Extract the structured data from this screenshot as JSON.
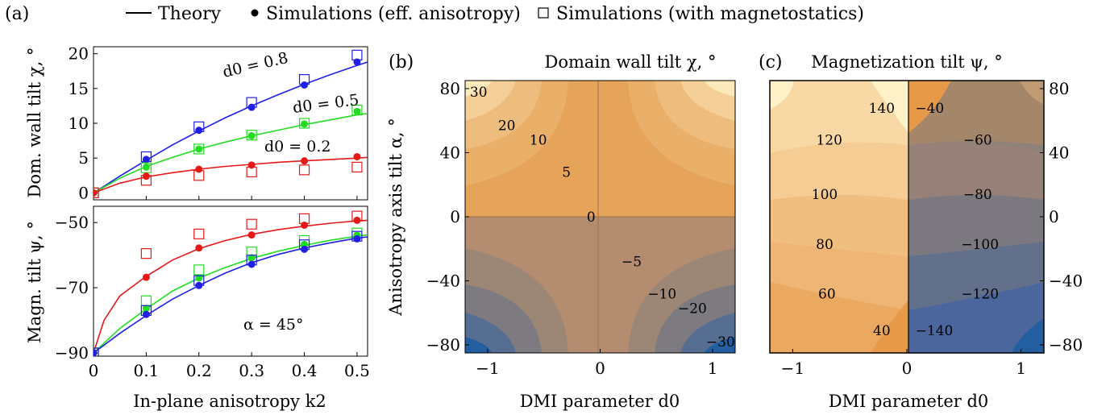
{
  "legend": {
    "theory": "Theory",
    "sim_eff": "Simulations (eff. anisotropy)",
    "sim_mag": "Simulations (with magnetostatics)"
  },
  "panel_labels": {
    "a": "(a)",
    "b": "(b)",
    "c": "(c)"
  },
  "colors": {
    "blue": "#1f1fe6",
    "green": "#22dd22",
    "red": "#e61919",
    "contour_light": "#fff2c8",
    "contour_mid": "#e8a050",
    "contour_dark": "#1e5aa0"
  },
  "chart_data": [
    {
      "id": "a_top",
      "type": "line",
      "ylabel": "Dom. wall tilt χ, °",
      "xlim": [
        0,
        0.52
      ],
      "ylim": [
        -1,
        21
      ],
      "yticks": [
        0,
        5,
        10,
        15,
        20
      ],
      "series": [
        {
          "name": "d0 = 0.8",
          "color": "blue",
          "theory_x": [
            0,
            0.05,
            0.1,
            0.15,
            0.2,
            0.25,
            0.3,
            0.35,
            0.4,
            0.45,
            0.5,
            0.52
          ],
          "theory_y": [
            0,
            2.4,
            4.7,
            6.9,
            8.9,
            10.8,
            12.5,
            14.1,
            15.6,
            17.0,
            18.3,
            18.8
          ],
          "sim_eff": [
            [
              0,
              0
            ],
            [
              0.1,
              4.8
            ],
            [
              0.2,
              9.0
            ],
            [
              0.3,
              12.3
            ],
            [
              0.4,
              15.5
            ],
            [
              0.5,
              18.8
            ]
          ],
          "sim_mag": [
            [
              0,
              0
            ],
            [
              0.1,
              5.2
            ],
            [
              0.2,
              9.5
            ],
            [
              0.3,
              13.0
            ],
            [
              0.4,
              16.3
            ],
            [
              0.5,
              19.8
            ]
          ]
        },
        {
          "name": "d0 = 0.5",
          "color": "green",
          "theory_x": [
            0,
            0.05,
            0.1,
            0.15,
            0.2,
            0.25,
            0.3,
            0.35,
            0.4,
            0.45,
            0.5,
            0.52
          ],
          "theory_y": [
            0,
            2.1,
            3.8,
            5.1,
            6.3,
            7.3,
            8.2,
            9.0,
            9.8,
            10.5,
            11.2,
            11.4
          ],
          "sim_eff": [
            [
              0,
              0
            ],
            [
              0.1,
              3.7
            ],
            [
              0.2,
              6.3
            ],
            [
              0.3,
              8.2
            ],
            [
              0.4,
              9.9
            ],
            [
              0.5,
              11.7
            ]
          ],
          "sim_mag": [
            [
              0,
              0
            ],
            [
              0.1,
              3.6
            ],
            [
              0.2,
              6.3
            ],
            [
              0.3,
              8.3
            ],
            [
              0.4,
              10.0
            ],
            [
              0.5,
              11.9
            ]
          ]
        },
        {
          "name": "d0 = 0.2",
          "color": "red",
          "theory_x": [
            0,
            0.05,
            0.1,
            0.15,
            0.2,
            0.25,
            0.3,
            0.35,
            0.4,
            0.45,
            0.5,
            0.52
          ],
          "theory_y": [
            0,
            1.4,
            2.3,
            2.9,
            3.4,
            3.8,
            4.1,
            4.4,
            4.6,
            4.8,
            5.0,
            5.1
          ],
          "sim_eff": [
            [
              0,
              0
            ],
            [
              0.1,
              2.4
            ],
            [
              0.2,
              3.4
            ],
            [
              0.3,
              4.0
            ],
            [
              0.4,
              4.6
            ],
            [
              0.5,
              5.2
            ]
          ],
          "sim_mag": [
            [
              0,
              0
            ],
            [
              0.1,
              1.8
            ],
            [
              0.2,
              2.5
            ],
            [
              0.3,
              3.0
            ],
            [
              0.4,
              3.3
            ],
            [
              0.5,
              3.7
            ]
          ]
        }
      ],
      "annotations": [
        "d0 = 0.8",
        "d0 = 0.5",
        "d0 = 0.2"
      ]
    },
    {
      "id": "a_bottom",
      "type": "line",
      "xlabel": "In-plane anisotropy k2",
      "ylabel": "Magn. tilt ψ, °",
      "xlim": [
        0,
        0.52
      ],
      "ylim": [
        -91,
        -45
      ],
      "xticks": [
        0,
        0.1,
        0.2,
        0.3,
        0.4,
        0.5
      ],
      "yticks": [
        -90,
        -70,
        -50
      ],
      "annotation": "α = 45°",
      "series": [
        {
          "name": "d0 = 0.2",
          "color": "red",
          "theory_x": [
            0,
            0.02,
            0.05,
            0.1,
            0.15,
            0.2,
            0.25,
            0.3,
            0.35,
            0.4,
            0.45,
            0.5,
            0.52
          ],
          "theory_y": [
            -90,
            -80,
            -72.5,
            -66.5,
            -61.5,
            -58,
            -55.5,
            -53.6,
            -52.2,
            -51.1,
            -50.2,
            -49.5,
            -49.3
          ],
          "sim_eff": [
            [
              0,
              -90
            ],
            [
              0.1,
              -66.8
            ],
            [
              0.2,
              -57.8
            ],
            [
              0.3,
              -53.8
            ],
            [
              0.4,
              -50.8
            ],
            [
              0.5,
              -49.3
            ]
          ],
          "sim_mag": [
            [
              0,
              -90
            ],
            [
              0.1,
              -59.5
            ],
            [
              0.2,
              -53.5
            ],
            [
              0.3,
              -50.5
            ],
            [
              0.4,
              -48.8
            ],
            [
              0.5,
              -48.0
            ]
          ]
        },
        {
          "name": "d0 = 0.5",
          "color": "green",
          "theory_x": [
            0,
            0.05,
            0.1,
            0.15,
            0.2,
            0.25,
            0.3,
            0.35,
            0.4,
            0.45,
            0.5,
            0.52
          ],
          "theory_y": [
            -90,
            -82.5,
            -76.5,
            -71,
            -67,
            -63.8,
            -61,
            -58.8,
            -57,
            -55.4,
            -54.2,
            -53.8
          ],
          "sim_eff": [
            [
              0,
              -90
            ],
            [
              0.1,
              -76.3
            ],
            [
              0.2,
              -67.0
            ],
            [
              0.3,
              -60.8
            ],
            [
              0.4,
              -56.7
            ],
            [
              0.5,
              -53.9
            ]
          ],
          "sim_mag": [
            [
              0,
              -90
            ],
            [
              0.1,
              -74.0
            ],
            [
              0.2,
              -64.5
            ],
            [
              0.3,
              -59.0
            ],
            [
              0.4,
              -55.5
            ],
            [
              0.5,
              -53.2
            ]
          ]
        },
        {
          "name": "d0 = 0.8",
          "color": "blue",
          "theory_x": [
            0,
            0.05,
            0.1,
            0.15,
            0.2,
            0.25,
            0.3,
            0.35,
            0.4,
            0.45,
            0.5,
            0.52
          ],
          "theory_y": [
            -90,
            -84,
            -78.5,
            -73.5,
            -69.3,
            -65.5,
            -62.3,
            -59.8,
            -57.8,
            -56.2,
            -54.8,
            -54.4
          ],
          "sim_eff": [
            [
              0,
              -90
            ],
            [
              0.1,
              -78.2
            ],
            [
              0.2,
              -69.3
            ],
            [
              0.3,
              -62.8
            ],
            [
              0.4,
              -58.2
            ],
            [
              0.5,
              -55.0
            ]
          ],
          "sim_mag": [
            [
              0,
              -90
            ],
            [
              0.1,
              -77.0
            ],
            [
              0.2,
              -67.8
            ],
            [
              0.3,
              -61.5
            ],
            [
              0.4,
              -56.8
            ],
            [
              0.5,
              -54.2
            ]
          ]
        }
      ]
    },
    {
      "id": "b",
      "type": "heatmap",
      "title": "Domain wall tilt χ, °",
      "xlabel": "DMI parameter d0",
      "ylabel": "Anisotropy axis tilt α, °",
      "xlim": [
        -1.2,
        1.2
      ],
      "ylim": [
        -85,
        85
      ],
      "xticks": [
        -1,
        0,
        1
      ],
      "yticks": [
        -80,
        -40,
        0,
        40,
        80
      ],
      "contour_labels": [
        {
          "text": "30",
          "x": -1.08,
          "y": 78
        },
        {
          "text": "20",
          "x": -0.83,
          "y": 57
        },
        {
          "text": "10",
          "x": -0.55,
          "y": 48
        },
        {
          "text": "5",
          "x": -0.3,
          "y": 28
        },
        {
          "text": "0",
          "x": -0.08,
          "y": 0
        },
        {
          "text": "−5",
          "x": 0.28,
          "y": -28
        },
        {
          "text": "−10",
          "x": 0.55,
          "y": -48
        },
        {
          "text": "−20",
          "x": 0.82,
          "y": -57
        },
        {
          "text": "−30",
          "x": 1.07,
          "y": -78
        }
      ]
    },
    {
      "id": "c",
      "type": "heatmap",
      "title": "Magnetization tilt ψ, °",
      "xlabel": "DMI parameter d0",
      "xlim": [
        -1.2,
        1.2
      ],
      "ylim": [
        -85,
        85
      ],
      "xticks": [
        -1,
        0,
        1
      ],
      "yticks": [
        -80,
        -40,
        0,
        40,
        80
      ],
      "contour_labels": [
        {
          "text": "140",
          "x": -0.22,
          "y": 68
        },
        {
          "text": "120",
          "x": -0.68,
          "y": 48
        },
        {
          "text": "100",
          "x": -0.72,
          "y": 14
        },
        {
          "text": "80",
          "x": -0.72,
          "y": -17
        },
        {
          "text": "60",
          "x": -0.7,
          "y": -48
        },
        {
          "text": "40",
          "x": -0.22,
          "y": -71
        },
        {
          "text": "−40",
          "x": 0.2,
          "y": 68
        },
        {
          "text": "−60",
          "x": 0.62,
          "y": 48
        },
        {
          "text": "−80",
          "x": 0.62,
          "y": 14
        },
        {
          "text": "−100",
          "x": 0.64,
          "y": -17
        },
        {
          "text": "−120",
          "x": 0.64,
          "y": -48
        },
        {
          "text": "−140",
          "x": 0.24,
          "y": -71
        }
      ]
    }
  ]
}
